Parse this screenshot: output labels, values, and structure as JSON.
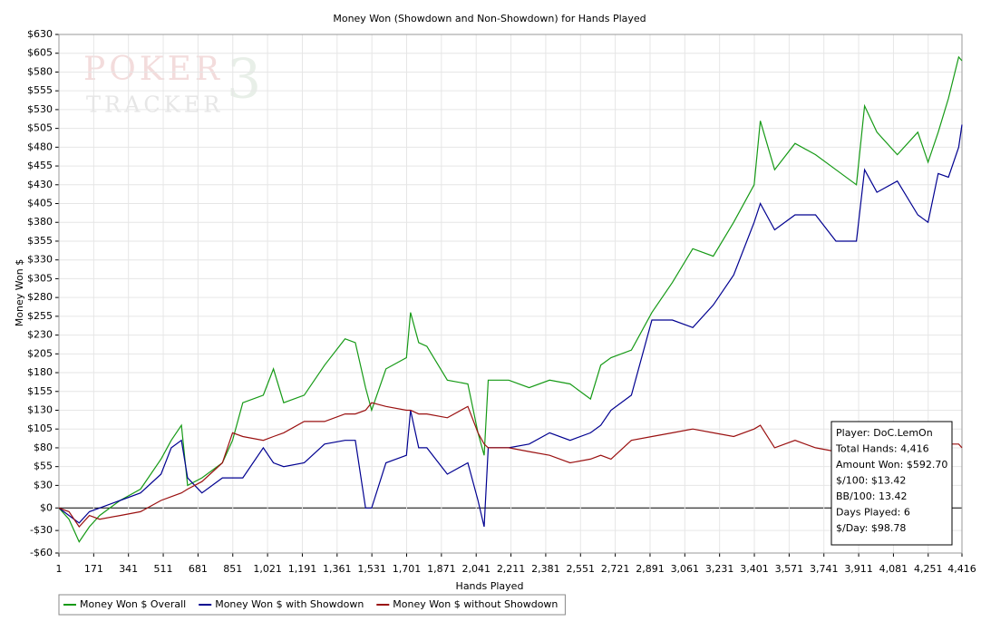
{
  "chart_data": {
    "type": "line",
    "title": "Money Won (Showdown and Non-Showdown) for Hands Played",
    "x_label": "Hands Played",
    "y_label": "Money Won $",
    "watermark": [
      "POKER",
      "TRACKER",
      "3"
    ],
    "annotations": [
      "Player: DoC.LemOn",
      "Total Hands: 4,416",
      "Amount Won: $592.70",
      "$/100: $13.42",
      "BB/100: 13.42",
      "Days Played: 6",
      "$/Day: $98.78"
    ],
    "grid": true,
    "legend": "bottom-left",
    "xlim": [
      1,
      4416
    ],
    "ylim": [
      -60,
      630
    ],
    "xticks": [
      1,
      171,
      341,
      511,
      681,
      851,
      {
        "value": 1021,
        "label": "1,021"
      },
      {
        "value": 1191,
        "label": "1,191"
      },
      {
        "value": 1361,
        "label": "1,361"
      },
      {
        "value": 1531,
        "label": "1,531"
      },
      {
        "value": 1701,
        "label": "1,701"
      },
      {
        "value": 1871,
        "label": "1,871"
      },
      {
        "value": 2041,
        "label": "2,041"
      },
      {
        "value": 2211,
        "label": "2,211"
      },
      {
        "value": 2381,
        "label": "2,381"
      },
      {
        "value": 2551,
        "label": "2,551"
      },
      {
        "value": 2721,
        "label": "2,721"
      },
      {
        "value": 2891,
        "label": "2,891"
      },
      {
        "value": 3061,
        "label": "3,061"
      },
      {
        "value": 3231,
        "label": "3,231"
      },
      {
        "value": 3401,
        "label": "3,401"
      },
      {
        "value": 3571,
        "label": "3,571"
      },
      {
        "value": 3741,
        "label": "3,741"
      },
      {
        "value": 3911,
        "label": "3,911"
      },
      {
        "value": 4081,
        "label": "4,081"
      },
      {
        "value": 4251,
        "label": "4,251"
      },
      {
        "value": 4416,
        "label": "4,416"
      }
    ],
    "yticks": [
      {
        "value": 630,
        "label": "$630"
      },
      {
        "value": 605,
        "label": "$605"
      },
      {
        "value": 580,
        "label": "$580"
      },
      {
        "value": 555,
        "label": "$555"
      },
      {
        "value": 530,
        "label": "$530"
      },
      {
        "value": 505,
        "label": "$505"
      },
      {
        "value": 480,
        "label": "$480"
      },
      {
        "value": 455,
        "label": "$455"
      },
      {
        "value": 430,
        "label": "$430"
      },
      {
        "value": 405,
        "label": "$405"
      },
      {
        "value": 380,
        "label": "$380"
      },
      {
        "value": 355,
        "label": "$355"
      },
      {
        "value": 330,
        "label": "$330"
      },
      {
        "value": 305,
        "label": "$305"
      },
      {
        "value": 280,
        "label": "$280"
      },
      {
        "value": 255,
        "label": "$255"
      },
      {
        "value": 230,
        "label": "$230"
      },
      {
        "value": 205,
        "label": "$205"
      },
      {
        "value": 180,
        "label": "$180"
      },
      {
        "value": 155,
        "label": "$155"
      },
      {
        "value": 130,
        "label": "$130"
      },
      {
        "value": 105,
        "label": "$105"
      },
      {
        "value": 80,
        "label": "$80"
      },
      {
        "value": 55,
        "label": "$55"
      },
      {
        "value": 30,
        "label": "$30"
      },
      {
        "value": 0,
        "label": "$0"
      },
      {
        "value": -30,
        "label": "-$30"
      },
      {
        "value": -60,
        "label": "-$60"
      }
    ],
    "x": [
      1,
      50,
      100,
      150,
      200,
      300,
      400,
      500,
      550,
      600,
      630,
      700,
      800,
      850,
      900,
      1000,
      1050,
      1100,
      1200,
      1300,
      1400,
      1450,
      1500,
      1530,
      1600,
      1700,
      1720,
      1760,
      1800,
      1900,
      2000,
      2050,
      2080,
      2100,
      2200,
      2300,
      2400,
      2500,
      2600,
      2650,
      2700,
      2800,
      2900,
      3000,
      3100,
      3200,
      3300,
      3400,
      3430,
      3500,
      3600,
      3700,
      3800,
      3900,
      3940,
      4000,
      4100,
      4200,
      4250,
      4300,
      4350,
      4400,
      4416
    ],
    "series": [
      {
        "name": "Money Won $ Overall",
        "color": "#169a16",
        "values": [
          0,
          -15,
          -45,
          -25,
          -10,
          10,
          25,
          65,
          90,
          110,
          30,
          40,
          60,
          90,
          140,
          150,
          185,
          140,
          150,
          190,
          225,
          220,
          160,
          130,
          185,
          200,
          260,
          220,
          215,
          170,
          165,
          100,
          70,
          170,
          170,
          160,
          170,
          165,
          145,
          190,
          200,
          210,
          260,
          300,
          345,
          335,
          380,
          430,
          515,
          450,
          485,
          470,
          450,
          430,
          535,
          500,
          470,
          500,
          460,
          500,
          545,
          600,
          595
        ]
      },
      {
        "name": "Money Won $ with Showdown",
        "color": "#000090",
        "values": [
          0,
          -10,
          -20,
          -5,
          0,
          10,
          20,
          45,
          80,
          90,
          40,
          20,
          40,
          40,
          40,
          80,
          60,
          55,
          60,
          85,
          90,
          90,
          0,
          0,
          60,
          70,
          130,
          80,
          80,
          45,
          60,
          10,
          -25,
          80,
          80,
          85,
          100,
          90,
          100,
          110,
          130,
          150,
          250,
          250,
          240,
          270,
          310,
          380,
          405,
          370,
          390,
          390,
          355,
          355,
          450,
          420,
          435,
          390,
          380,
          445,
          440,
          480,
          510
        ]
      },
      {
        "name": "Money Won $ without Showdown",
        "color": "#9a1010",
        "values": [
          0,
          -5,
          -25,
          -10,
          -15,
          -10,
          -5,
          10,
          15,
          20,
          25,
          35,
          60,
          100,
          95,
          90,
          95,
          100,
          115,
          115,
          125,
          125,
          130,
          140,
          135,
          130,
          130,
          125,
          125,
          120,
          135,
          100,
          85,
          80,
          80,
          75,
          70,
          60,
          65,
          70,
          65,
          90,
          95,
          100,
          105,
          100,
          95,
          105,
          110,
          80,
          90,
          80,
          75,
          80,
          85,
          95,
          100,
          95,
          90,
          85,
          85,
          85,
          80
        ]
      }
    ]
  }
}
